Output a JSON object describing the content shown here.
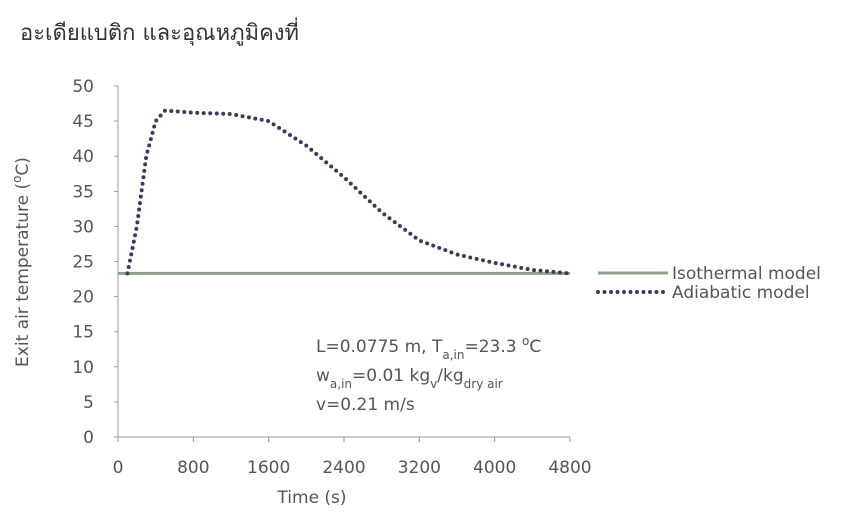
{
  "heading": "อะเดียแบติก และอุณหภูมิคงที่",
  "chart_data": {
    "type": "line",
    "x": [
      0,
      100,
      200,
      300,
      400,
      500,
      600,
      800,
      1200,
      1600,
      2000,
      2400,
      2800,
      3200,
      3600,
      4000,
      4400,
      4800
    ],
    "series": [
      {
        "name": "Isothermal model",
        "color": "#8f9f8f",
        "style": "solid",
        "values": [
          23.3,
          23.3,
          23.3,
          23.3,
          23.3,
          23.3,
          23.3,
          23.3,
          23.3,
          23.3,
          23.3,
          23.3,
          23.3,
          23.3,
          23.3,
          23.3,
          23.3,
          23.3
        ]
      },
      {
        "name": "Adiabatic model",
        "color": "#3c3c5a",
        "style": "dotted",
        "values": [
          null,
          23.3,
          30,
          40,
          45,
          46.5,
          46.4,
          46.2,
          46,
          45,
          41.5,
          37,
          32,
          28,
          26,
          24.8,
          23.8,
          23.3
        ]
      }
    ],
    "xlabel": "Time (s)",
    "ylabel": [
      {
        "text": "Exit air temperature ("
      },
      {
        "text": "o",
        "shift": "super"
      },
      {
        "text": "C)"
      }
    ],
    "xlim": [
      0,
      4800
    ],
    "xticks": [
      0,
      800,
      1600,
      2400,
      3200,
      4000,
      4800
    ],
    "ylim": [
      0,
      50
    ],
    "yticks": [
      0,
      5,
      10,
      15,
      20,
      25,
      30,
      35,
      40,
      45,
      50
    ],
    "grid": false,
    "legend": "right",
    "annotation": [
      [
        {
          "text": "L=0.0775 m, T"
        },
        {
          "text": "a,in",
          "shift": "sub"
        },
        {
          "text": "=23.3 "
        },
        {
          "text": "o",
          "shift": "super"
        },
        {
          "text": "C"
        }
      ],
      [
        {
          "text": "w"
        },
        {
          "text": "a,in",
          "shift": "sub"
        },
        {
          "text": "=0.01 kg"
        },
        {
          "text": "v",
          "shift": "sub"
        },
        {
          "text": "/kg"
        },
        {
          "text": "dry air",
          "shift": "sub"
        }
      ],
      [
        {
          "text": "v=0.21 m/s"
        }
      ]
    ]
  }
}
